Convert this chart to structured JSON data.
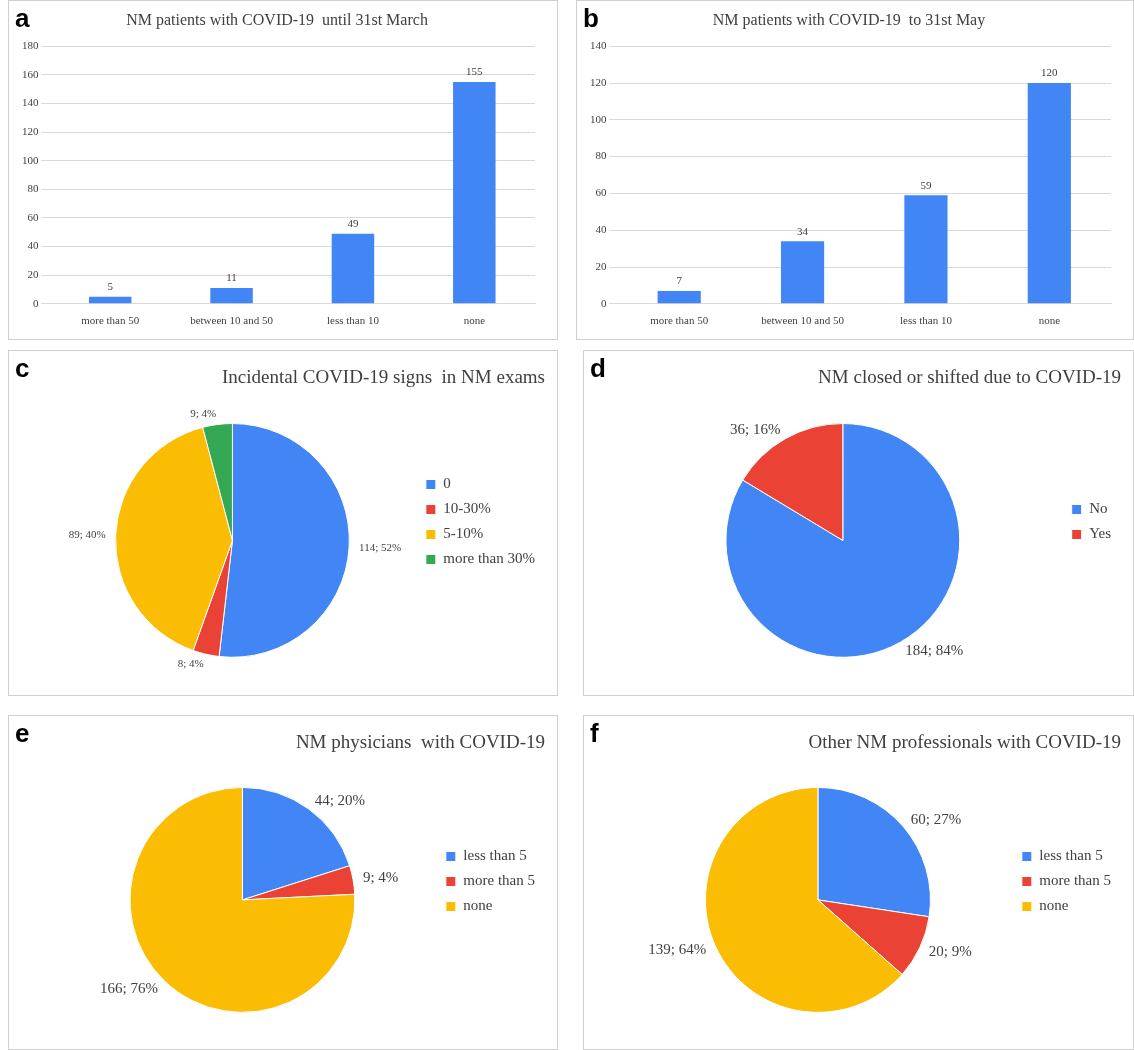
{
  "chart_data": [
    {
      "type": "bar",
      "title": "NM patients with COVID-19  until 31st March",
      "annotations": [
        "a"
      ],
      "categories": [
        "more than 50",
        "between 10 and 50",
        "less than 10",
        "none"
      ],
      "values": [
        5,
        11,
        49,
        155
      ],
      "color": "#4285f4",
      "ylim": [
        0,
        180
      ],
      "yticks": [
        0,
        20,
        40,
        60,
        80,
        100,
        120,
        140,
        160,
        180
      ],
      "grid": "y",
      "data_labels": true
    },
    {
      "type": "bar",
      "title": "NM patients with COVID-19  to 31st May",
      "annotations": [
        "b"
      ],
      "categories": [
        "more than 50",
        "between 10 and 50",
        "less than 10",
        "none"
      ],
      "values": [
        7,
        34,
        59,
        120
      ],
      "color": "#4285f4",
      "ylim": [
        0,
        140
      ],
      "yticks": [
        0,
        20,
        40,
        60,
        80,
        100,
        120,
        140
      ],
      "grid": "y",
      "data_labels": true
    },
    {
      "type": "pie",
      "title": "Incidental COVID-19 signs  in NM exams",
      "annotations": [
        "c"
      ],
      "categories": [
        "0",
        "10-30%",
        "5-10%",
        "more than 30%"
      ],
      "values": [
        114,
        8,
        89,
        9
      ],
      "colors": [
        "#4285f4",
        "#ea4335",
        "#fbbc04",
        "#34a853"
      ],
      "value_labels": [
        "114; 52%",
        "8; 4%",
        "89; 40%",
        "9; 4%"
      ],
      "legend": "right"
    },
    {
      "type": "pie",
      "title": "NM closed or shifted due to COVID-19",
      "annotations": [
        "d"
      ],
      "categories": [
        "No",
        "Yes"
      ],
      "values": [
        184,
        36
      ],
      "colors": [
        "#4285f4",
        "#ea4335"
      ],
      "value_labels": [
        "184; 84%",
        "36; 16%"
      ],
      "legend": "right"
    },
    {
      "type": "pie",
      "title": "NM physicians  with COVID-19",
      "annotations": [
        "e"
      ],
      "categories": [
        "less than 5",
        "more than 5",
        "none"
      ],
      "values": [
        44,
        9,
        166
      ],
      "colors": [
        "#4285f4",
        "#ea4335",
        "#fbbc04"
      ],
      "value_labels": [
        "44; 20%",
        "9; 4%",
        "166; 76%"
      ],
      "legend": "right"
    },
    {
      "type": "pie",
      "title": "Other NM professionals with COVID-19",
      "annotations": [
        "f"
      ],
      "categories": [
        "less than 5",
        "more than 5",
        "none"
      ],
      "values": [
        60,
        20,
        139
      ],
      "colors": [
        "#4285f4",
        "#ea4335",
        "#fbbc04"
      ],
      "value_labels": [
        "60; 27%",
        "20; 9%",
        "139; 64%"
      ],
      "legend": "right"
    }
  ]
}
